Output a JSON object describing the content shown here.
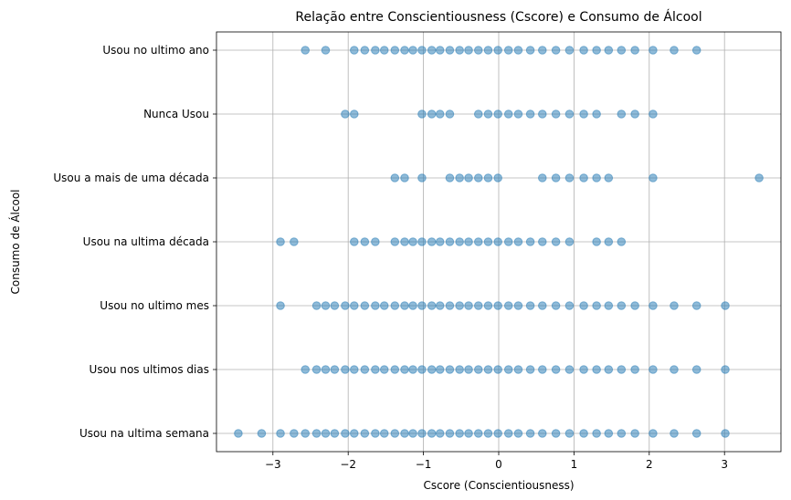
{
  "chart_data": {
    "type": "scatter",
    "title": "Relação entre Conscientiousness (Cscore) e Consumo de Álcool",
    "xlabel": "Cscore (Conscientiousness)",
    "ylabel": "Consumo de Álcool",
    "xlim": [
      -3.75,
      3.75
    ],
    "x_ticks": [
      -3,
      -2,
      -1,
      0,
      1,
      2,
      3
    ],
    "x_tick_labels": [
      "−3",
      "−2",
      "−1",
      "0",
      "1",
      "2",
      "3"
    ],
    "categories": [
      "Usou na ultima semana",
      "Usou nos ultimos dias",
      "Usou no ultimo mes",
      "Usou na ultima década",
      "Usou a mais de uma década",
      "Nunca Usou",
      "Usou no ultimo ano"
    ],
    "grid": true,
    "marker_color": "#1f77b4",
    "series": [
      {
        "category": "Usou na ultima semana",
        "x": [
          -3.46,
          -3.15,
          -2.9,
          -2.72,
          -2.57,
          -2.42,
          -2.3,
          -2.18,
          -2.04,
          -1.92,
          -1.78,
          -1.64,
          -1.52,
          -1.38,
          -1.25,
          -1.14,
          -1.02,
          -0.89,
          -0.78,
          -0.65,
          -0.52,
          -0.4,
          -0.27,
          -0.14,
          -0.01,
          0.13,
          0.26,
          0.42,
          0.58,
          0.76,
          0.94,
          1.13,
          1.3,
          1.46,
          1.63,
          1.81,
          2.05,
          2.33,
          2.63,
          3.01
        ]
      },
      {
        "category": "Usou nos ultimos dias",
        "x": [
          -2.57,
          -2.42,
          -2.3,
          -2.18,
          -2.04,
          -1.92,
          -1.78,
          -1.64,
          -1.52,
          -1.38,
          -1.25,
          -1.14,
          -1.02,
          -0.89,
          -0.78,
          -0.65,
          -0.52,
          -0.4,
          -0.27,
          -0.14,
          -0.01,
          0.13,
          0.26,
          0.42,
          0.58,
          0.76,
          0.94,
          1.13,
          1.3,
          1.46,
          1.63,
          1.81,
          2.05,
          2.33,
          2.63,
          3.01
        ]
      },
      {
        "category": "Usou no ultimo mes",
        "x": [
          -2.9,
          -2.42,
          -2.3,
          -2.18,
          -2.04,
          -1.92,
          -1.78,
          -1.64,
          -1.52,
          -1.38,
          -1.25,
          -1.14,
          -1.02,
          -0.89,
          -0.78,
          -0.65,
          -0.52,
          -0.4,
          -0.27,
          -0.14,
          -0.01,
          0.13,
          0.26,
          0.42,
          0.58,
          0.76,
          0.94,
          1.13,
          1.3,
          1.46,
          1.63,
          1.81,
          2.05,
          2.33,
          2.63,
          3.01
        ]
      },
      {
        "category": "Usou na ultima década",
        "x": [
          -2.9,
          -2.72,
          -1.92,
          -1.78,
          -1.64,
          -1.38,
          -1.25,
          -1.14,
          -1.02,
          -0.89,
          -0.78,
          -0.65,
          -0.52,
          -0.4,
          -0.27,
          -0.14,
          -0.01,
          0.13,
          0.26,
          0.42,
          0.58,
          0.76,
          0.94,
          1.3,
          1.46,
          1.63
        ]
      },
      {
        "category": "Usou a mais de uma década",
        "x": [
          -1.38,
          -1.25,
          -1.02,
          -0.65,
          -0.52,
          -0.4,
          -0.27,
          -0.14,
          -0.01,
          0.58,
          0.76,
          0.94,
          1.13,
          1.3,
          1.46,
          2.05,
          3.46
        ]
      },
      {
        "category": "Nunca Usou",
        "x": [
          -2.04,
          -1.92,
          -1.02,
          -0.89,
          -0.78,
          -0.65,
          -0.27,
          -0.14,
          -0.01,
          0.13,
          0.26,
          0.42,
          0.58,
          0.76,
          0.94,
          1.13,
          1.3,
          1.63,
          1.81,
          2.05
        ]
      },
      {
        "category": "Usou no ultimo ano",
        "x": [
          -2.57,
          -2.3,
          -1.92,
          -1.78,
          -1.64,
          -1.52,
          -1.38,
          -1.25,
          -1.14,
          -1.02,
          -0.89,
          -0.78,
          -0.65,
          -0.52,
          -0.4,
          -0.27,
          -0.14,
          -0.01,
          0.13,
          0.26,
          0.42,
          0.58,
          0.76,
          0.94,
          1.13,
          1.3,
          1.46,
          1.63,
          1.81,
          2.05,
          2.33,
          2.63
        ]
      }
    ]
  }
}
